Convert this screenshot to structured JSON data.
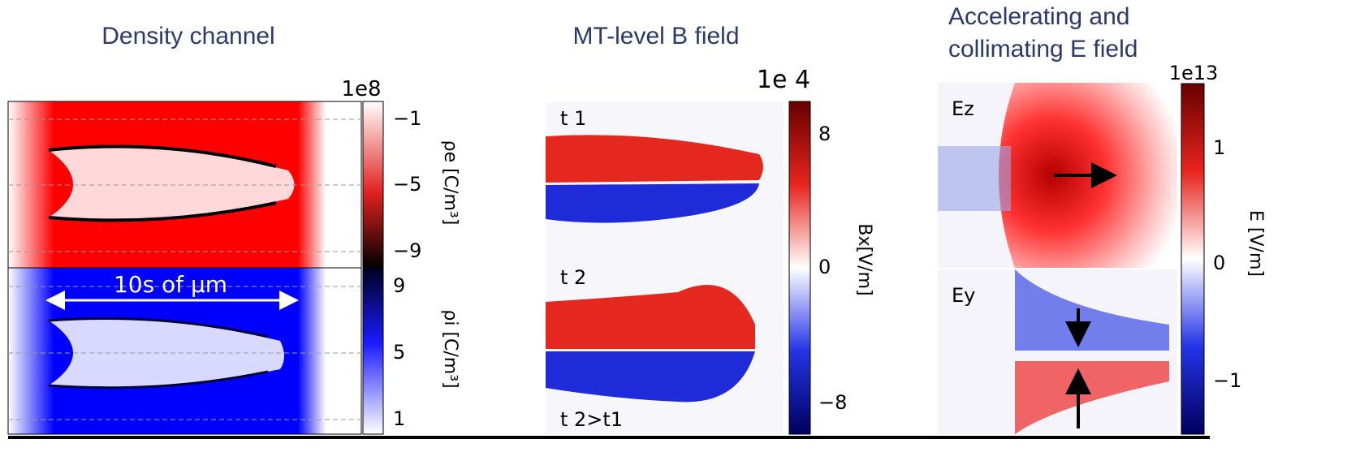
{
  "panels": [
    {
      "title": "Density channel",
      "exponent": "1e8",
      "subplots": [
        {
          "colorbar_label": "ρe [C/m³]",
          "ticks": [
            "−1",
            "−5",
            "−9"
          ]
        },
        {
          "colorbar_label": "ρi [C/m³]",
          "ticks": [
            "9",
            "5",
            "1"
          ],
          "annotation": "10s of μm"
        }
      ]
    },
    {
      "title": "MT-level B field",
      "exponent": "1e 4",
      "colorbar_label": "Bx[V/m]",
      "ticks": [
        "8",
        "0",
        "−8"
      ],
      "annotations": [
        "t 1",
        "t 2",
        "t 2>t1"
      ]
    },
    {
      "title_lines": [
        "Accelerating and",
        "collimating E field"
      ],
      "exponent": "1e13",
      "colorbar_label": "E [V/m]",
      "ticks": [
        "1",
        "0",
        "−1"
      ],
      "subplot_labels": [
        "Ez",
        "Ey"
      ]
    }
  ]
}
